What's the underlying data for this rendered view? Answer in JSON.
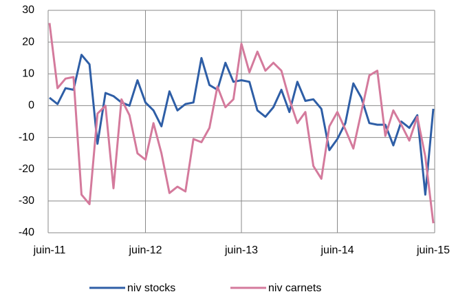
{
  "chart_data": {
    "type": "line",
    "categories": [
      "juin-11",
      null,
      null,
      null,
      null,
      null,
      null,
      null,
      null,
      null,
      null,
      null,
      "juin-12",
      null,
      null,
      null,
      null,
      null,
      null,
      null,
      null,
      null,
      null,
      null,
      "juin-13",
      null,
      null,
      null,
      null,
      null,
      null,
      null,
      null,
      null,
      null,
      null,
      "juin-14",
      null,
      null,
      null,
      null,
      null,
      null,
      null,
      null,
      null,
      null,
      null,
      "juin-15"
    ],
    "series": [
      {
        "name": "niv stocks",
        "color": "#2e5ea6",
        "values": [
          2.5,
          0.5,
          5.5,
          5,
          16,
          13,
          -12,
          4,
          3,
          1,
          0,
          8,
          1,
          -1.5,
          -6.5,
          4.5,
          -1.5,
          0.5,
          1,
          15,
          6.5,
          5,
          13.5,
          7.5,
          8,
          7.5,
          -1.5,
          -3.5,
          -0.5,
          5,
          -2,
          7.5,
          1.5,
          2,
          -1,
          -14,
          -10.5,
          -5.5,
          7,
          2.5,
          -5.5,
          -6,
          -6,
          -12.5,
          -5,
          -7,
          -3,
          -28,
          -1
        ]
      },
      {
        "name": "niv carnets",
        "color": "#d47a9c",
        "values": [
          26,
          5.5,
          8.5,
          9,
          -28,
          -31,
          -2.5,
          0,
          -26,
          2,
          -3,
          -15,
          -17,
          -5.5,
          -15,
          -27.5,
          -25.5,
          -27,
          -10.5,
          -11.5,
          -7,
          6,
          -0.5,
          2,
          19.5,
          10.5,
          17,
          11,
          13.5,
          11,
          2,
          -5.5,
          -2,
          -19,
          -23,
          -6.5,
          -2,
          -7.5,
          -13.5,
          -2,
          9.5,
          11,
          -9.5,
          -1.5,
          -6,
          -11,
          -3.5,
          -16,
          -37
        ]
      }
    ],
    "ylim": [
      -40,
      30
    ],
    "yticks": [
      -40,
      -30,
      -20,
      -10,
      0,
      10,
      20,
      30
    ],
    "grid": true,
    "legend": "bottom"
  }
}
